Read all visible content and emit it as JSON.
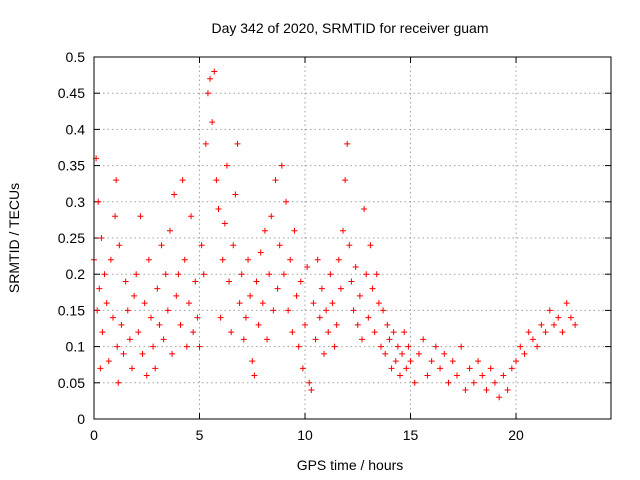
{
  "chart_data": {
    "type": "scatter",
    "title": "Day 342 of 2020, SRMTID for receiver guam",
    "xlabel": "GPS time / hours",
    "ylabel": "SRMTID / TECUs",
    "xlim": [
      0,
      24.5
    ],
    "ylim": [
      0,
      0.5
    ],
    "xticks": [
      0,
      5,
      10,
      15,
      20
    ],
    "yticks": [
      0,
      0.05,
      0.1,
      0.15,
      0.2,
      0.25,
      0.3,
      0.35,
      0.4,
      0.45,
      0.5
    ],
    "xtick_labels": [
      "0",
      "5",
      "10",
      "15",
      "20"
    ],
    "ytick_labels": [
      "0",
      "0.05",
      "0.1",
      "0.15",
      "0.2",
      "0.25",
      "0.3",
      "0.35",
      "0.4",
      "0.45",
      "0.5"
    ],
    "grid": true,
    "marker": "+",
    "color": "#ff0000",
    "series": [
      {
        "name": "SRMTID",
        "x": [
          0.0,
          0.1,
          0.15,
          0.2,
          0.25,
          0.3,
          0.35,
          0.4,
          0.5,
          0.6,
          0.7,
          0.8,
          0.9,
          1.0,
          1.05,
          1.1,
          1.15,
          1.2,
          1.3,
          1.4,
          1.5,
          1.6,
          1.7,
          1.8,
          1.9,
          2.0,
          2.1,
          2.2,
          2.3,
          2.4,
          2.5,
          2.6,
          2.7,
          2.8,
          2.9,
          3.0,
          3.1,
          3.2,
          3.3,
          3.4,
          3.5,
          3.6,
          3.7,
          3.8,
          3.9,
          4.0,
          4.1,
          4.2,
          4.3,
          4.4,
          4.5,
          4.6,
          4.7,
          4.8,
          4.9,
          5.0,
          5.1,
          5.2,
          5.3,
          5.4,
          5.5,
          5.6,
          5.7,
          5.8,
          5.9,
          6.0,
          6.1,
          6.2,
          6.3,
          6.4,
          6.5,
          6.6,
          6.7,
          6.8,
          6.9,
          7.0,
          7.1,
          7.2,
          7.3,
          7.4,
          7.5,
          7.6,
          7.7,
          7.8,
          7.9,
          8.0,
          8.1,
          8.2,
          8.3,
          8.4,
          8.5,
          8.6,
          8.7,
          8.8,
          8.9,
          9.0,
          9.1,
          9.2,
          9.3,
          9.4,
          9.5,
          9.6,
          9.7,
          9.8,
          9.9,
          10.0,
          10.1,
          10.2,
          10.3,
          10.4,
          10.5,
          10.6,
          10.7,
          10.8,
          10.9,
          11.0,
          11.1,
          11.2,
          11.3,
          11.4,
          11.5,
          11.6,
          11.7,
          11.8,
          11.9,
          12.0,
          12.1,
          12.2,
          12.3,
          12.4,
          12.5,
          12.6,
          12.7,
          12.8,
          12.9,
          13.0,
          13.1,
          13.2,
          13.3,
          13.4,
          13.5,
          13.6,
          13.7,
          13.8,
          13.9,
          14.0,
          14.1,
          14.2,
          14.3,
          14.4,
          14.5,
          14.6,
          14.7,
          14.8,
          14.9,
          15.0,
          15.2,
          15.4,
          15.6,
          15.8,
          16.0,
          16.2,
          16.4,
          16.6,
          16.8,
          17.0,
          17.2,
          17.4,
          17.6,
          17.8,
          18.0,
          18.2,
          18.4,
          18.6,
          18.8,
          19.0,
          19.2,
          19.4,
          19.6,
          19.8,
          20.0,
          20.2,
          20.4,
          20.6,
          20.8,
          21.0,
          21.2,
          21.4,
          21.6,
          21.8,
          22.0,
          22.2,
          22.4,
          22.6,
          22.8
        ],
        "y": [
          0.22,
          0.36,
          0.15,
          0.3,
          0.18,
          0.07,
          0.25,
          0.12,
          0.2,
          0.16,
          0.08,
          0.22,
          0.14,
          0.28,
          0.33,
          0.1,
          0.05,
          0.24,
          0.13,
          0.09,
          0.19,
          0.15,
          0.11,
          0.07,
          0.17,
          0.2,
          0.12,
          0.28,
          0.09,
          0.16,
          0.06,
          0.22,
          0.14,
          0.1,
          0.07,
          0.18,
          0.13,
          0.24,
          0.11,
          0.2,
          0.15,
          0.26,
          0.09,
          0.31,
          0.17,
          0.2,
          0.13,
          0.33,
          0.22,
          0.1,
          0.16,
          0.28,
          0.12,
          0.19,
          0.14,
          0.1,
          0.24,
          0.2,
          0.38,
          0.45,
          0.47,
          0.41,
          0.48,
          0.33,
          0.29,
          0.14,
          0.22,
          0.27,
          0.35,
          0.19,
          0.12,
          0.24,
          0.31,
          0.38,
          0.16,
          0.2,
          0.11,
          0.14,
          0.22,
          0.17,
          0.08,
          0.06,
          0.19,
          0.13,
          0.23,
          0.16,
          0.26,
          0.11,
          0.2,
          0.28,
          0.15,
          0.33,
          0.18,
          0.24,
          0.35,
          0.2,
          0.3,
          0.15,
          0.22,
          0.12,
          0.26,
          0.17,
          0.1,
          0.19,
          0.07,
          0.13,
          0.21,
          0.05,
          0.04,
          0.16,
          0.11,
          0.22,
          0.14,
          0.18,
          0.09,
          0.15,
          0.12,
          0.2,
          0.16,
          0.1,
          0.13,
          0.22,
          0.18,
          0.26,
          0.33,
          0.38,
          0.24,
          0.19,
          0.15,
          0.21,
          0.13,
          0.17,
          0.11,
          0.29,
          0.2,
          0.14,
          0.24,
          0.18,
          0.12,
          0.2,
          0.16,
          0.1,
          0.15,
          0.09,
          0.13,
          0.11,
          0.07,
          0.12,
          0.08,
          0.1,
          0.06,
          0.09,
          0.12,
          0.07,
          0.1,
          0.08,
          0.05,
          0.09,
          0.11,
          0.06,
          0.08,
          0.1,
          0.07,
          0.09,
          0.05,
          0.08,
          0.06,
          0.1,
          0.04,
          0.07,
          0.05,
          0.08,
          0.06,
          0.04,
          0.07,
          0.05,
          0.03,
          0.06,
          0.04,
          0.07,
          0.08,
          0.1,
          0.09,
          0.12,
          0.11,
          0.1,
          0.13,
          0.12,
          0.15,
          0.13,
          0.14,
          0.12,
          0.16,
          0.14,
          0.13
        ]
      }
    ]
  }
}
